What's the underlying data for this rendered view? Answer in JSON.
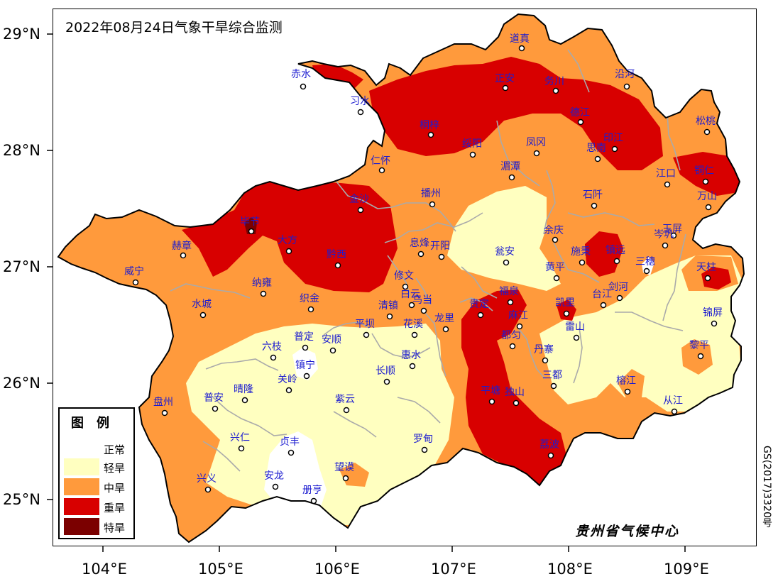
{
  "title": "2022年08月24日气象干旱综合监测",
  "axes": {
    "y_ticks": [
      "29°N",
      "28°N",
      "27°N",
      "26°N",
      "25°N"
    ],
    "x_ticks": [
      "104°E",
      "105°E",
      "106°E",
      "107°E",
      "108°E",
      "109°E"
    ]
  },
  "legend": {
    "title": "图例",
    "items": [
      {
        "label": "正常",
        "color": "#ffffff"
      },
      {
        "label": "轻旱",
        "color": "#ffffc0"
      },
      {
        "label": "中旱",
        "color": "#ff9a3c"
      },
      {
        "label": "重旱",
        "color": "#d80000"
      },
      {
        "label": "特旱",
        "color": "#7b0000"
      }
    ]
  },
  "cities": [
    "道真",
    "赤水",
    "正安",
    "务川",
    "沿河",
    "习水",
    "桐梓",
    "德江",
    "松桃",
    "绥阳",
    "凤冈",
    "印江",
    "思南",
    "仁怀",
    "湄潭",
    "江口",
    "铜仁",
    "金沙",
    "播州",
    "石阡",
    "万山",
    "毕节",
    "玉屏",
    "岑巩",
    "大方",
    "赫章",
    "息烽",
    "开阳",
    "余庆",
    "黔西",
    "瓮安",
    "施秉",
    "镇远",
    "三穗",
    "天柱",
    "威宁",
    "修文",
    "黄平",
    "纳雍",
    "白云",
    "福泉",
    "剑河",
    "清镇",
    "乌当",
    "贵定",
    "凯里",
    "台江",
    "水城",
    "织金",
    "锦屏",
    "平坝",
    "花溪",
    "龙里",
    "麻江",
    "雷山",
    "六枝",
    "普定",
    "安顺",
    "都匀",
    "黎平",
    "丹寨",
    "镇宁",
    "惠水",
    "长顺",
    "三都",
    "关岭",
    "榕江",
    "普安",
    "晴隆",
    "盘州",
    "紫云",
    "从江",
    "独山",
    "平塘",
    "兴仁",
    "贞丰",
    "罗甸",
    "荔波",
    "望谟",
    "安龙",
    "兴义",
    "册亨"
  ],
  "agency": "贵州省气候中心",
  "map_number": "GS(2017)3320号"
}
